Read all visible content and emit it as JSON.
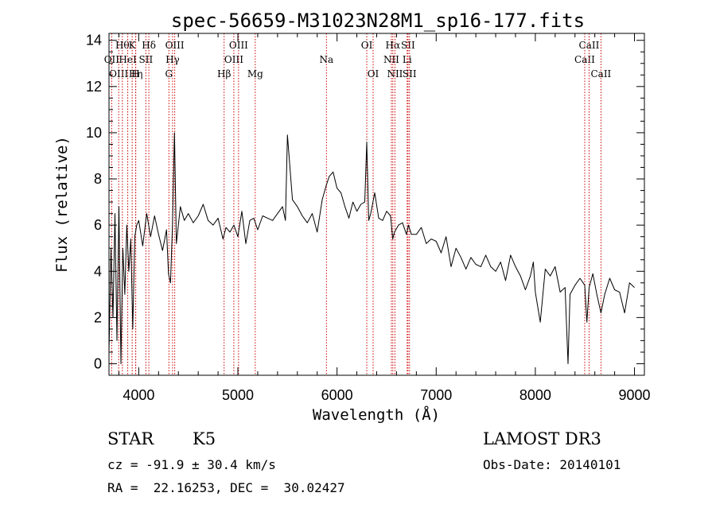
{
  "chart_data": {
    "type": "line",
    "title": "spec-56659-M31023N28M1_sp16-177.fits",
    "xlabel": "Wavelength (Å)",
    "ylabel": "Flux (relative)",
    "xlim": [
      3700,
      9100
    ],
    "ylim": [
      -0.5,
      14.3
    ],
    "xticks": [
      4000,
      5000,
      6000,
      7000,
      8000,
      9000
    ],
    "yticks": [
      0,
      2,
      4,
      6,
      8,
      10,
      12,
      14
    ],
    "grid": false,
    "series": [
      {
        "x": [
          3700,
          3720,
          3740,
          3760,
          3780,
          3800,
          3820,
          3840,
          3860,
          3880,
          3900,
          3920,
          3940,
          3960,
          3980,
          4000,
          4040,
          4080,
          4120,
          4160,
          4200,
          4240,
          4280,
          4300,
          4320,
          4340,
          4360,
          4380,
          4420,
          4460,
          4500,
          4550,
          4600,
          4650,
          4700,
          4750,
          4800,
          4850,
          4880,
          4920,
          4960,
          5000,
          5040,
          5080,
          5120,
          5160,
          5200,
          5250,
          5300,
          5350,
          5400,
          5450,
          5480,
          5500,
          5550,
          5600,
          5650,
          5700,
          5750,
          5800,
          5850,
          5890,
          5920,
          5960,
          6000,
          6040,
          6080,
          6120,
          6160,
          6200,
          6240,
          6280,
          6300,
          6320,
          6340,
          6380,
          6420,
          6460,
          6500,
          6540,
          6562,
          6580,
          6620,
          6660,
          6700,
          6720,
          6750,
          6800,
          6850,
          6900,
          6950,
          7000,
          7050,
          7100,
          7150,
          7200,
          7250,
          7300,
          7350,
          7400,
          7450,
          7500,
          7550,
          7600,
          7650,
          7700,
          7750,
          7800,
          7850,
          7900,
          7950,
          7980,
          8000,
          8050,
          8100,
          8150,
          8200,
          8250,
          8300,
          8330,
          8350,
          8400,
          8450,
          8498,
          8520,
          8542,
          8580,
          8620,
          8662,
          8700,
          8750,
          8800,
          8850,
          8900,
          8950,
          9000
        ],
        "y": [
          0.5,
          5,
          2,
          6.5,
          1,
          6.8,
          0,
          5,
          3,
          6,
          4,
          5.4,
          1.5,
          5.5,
          6,
          6.2,
          5.1,
          6.5,
          5.5,
          6.4,
          5.6,
          4.9,
          5.8,
          3.9,
          3.5,
          6,
          10,
          5.2,
          6.8,
          6.2,
          6.5,
          6.1,
          6.4,
          6.9,
          6.2,
          6.0,
          6.3,
          5.4,
          5.9,
          5.7,
          6.0,
          5.5,
          6.6,
          5.2,
          6.2,
          6.3,
          5.8,
          6.4,
          6.3,
          6.2,
          6.5,
          6.8,
          6.2,
          9.9,
          7.1,
          6.8,
          6.4,
          6.1,
          6.5,
          5.7,
          7.1,
          7.7,
          8.1,
          8.3,
          7.6,
          7.4,
          6.8,
          6.3,
          7.0,
          6.6,
          6.9,
          7.0,
          9.6,
          6.2,
          6.5,
          7.4,
          6.3,
          6.2,
          6.6,
          6.4,
          5.4,
          5.7,
          6.0,
          6.1,
          5.6,
          6.0,
          5.6,
          5.6,
          5.9,
          5.2,
          5.4,
          5.3,
          4.8,
          5.5,
          4.2,
          5.0,
          4.6,
          4.1,
          4.6,
          4.3,
          4.2,
          4.7,
          4.2,
          4.0,
          4.4,
          3.6,
          4.7,
          4.2,
          3.8,
          3.2,
          3.8,
          4.4,
          3.1,
          1.8,
          4.1,
          3.8,
          4.2,
          3.1,
          3.3,
          0.0,
          3.0,
          3.4,
          3.7,
          3.4,
          1.8,
          3.3,
          3.9,
          3.0,
          2.2,
          3.0,
          3.7,
          3.2,
          3.1,
          2.2,
          3.5,
          3.3
        ]
      }
    ],
    "line_markers": [
      {
        "wavelength": 3727,
        "label": "OII",
        "row": 1
      },
      {
        "wavelength": 3798,
        "label": "OIII",
        "row": 2
      },
      {
        "wavelength": 3835,
        "label": "Hθ",
        "row": 0
      },
      {
        "wavelength": 3889,
        "label": "HeI",
        "row": 1
      },
      {
        "wavelength": 3934,
        "label": "K",
        "row": 0
      },
      {
        "wavelength": 3970,
        "label": "Hη",
        "row": 2
      },
      {
        "wavelength": 3968,
        "label": "H",
        "row": 2
      },
      {
        "wavelength": 4072,
        "label": "SII",
        "row": 1
      },
      {
        "wavelength": 4102,
        "label": "Hδ",
        "row": 0
      },
      {
        "wavelength": 4304,
        "label": "G",
        "row": 2
      },
      {
        "wavelength": 4341,
        "label": "Hγ",
        "row": 1
      },
      {
        "wavelength": 4363,
        "label": "OIII",
        "row": 0
      },
      {
        "wavelength": 4861,
        "label": "Hβ",
        "row": 2
      },
      {
        "wavelength": 4959,
        "label": "OIII",
        "row": 1
      },
      {
        "wavelength": 5007,
        "label": "OIII",
        "row": 0
      },
      {
        "wavelength": 5175,
        "label": "Mg",
        "row": 2
      },
      {
        "wavelength": 5893,
        "label": "Na",
        "row": 1
      },
      {
        "wavelength": 6300,
        "label": "OI",
        "row": 0
      },
      {
        "wavelength": 6364,
        "label": "OI",
        "row": 2
      },
      {
        "wavelength": 6548,
        "label": "NII",
        "row": 1
      },
      {
        "wavelength": 6563,
        "label": "Hα",
        "row": 0
      },
      {
        "wavelength": 6584,
        "label": "NII",
        "row": 2
      },
      {
        "wavelength": 6707,
        "label": "Li",
        "row": 1
      },
      {
        "wavelength": 6716,
        "label": "SII",
        "row": 0
      },
      {
        "wavelength": 6731,
        "label": "SII",
        "row": 2
      },
      {
        "wavelength": 8498,
        "label": "CaII",
        "row": 1
      },
      {
        "wavelength": 8542,
        "label": "CaII",
        "row": 0
      },
      {
        "wavelength": 8662,
        "label": "CaII",
        "row": 2
      }
    ]
  },
  "info": {
    "class": "STAR",
    "subclass": "K5",
    "survey": "LAMOST DR3",
    "redshift": "cz = -91.9 ± 30.4 km/s",
    "obs_date": "Obs-Date: 20140101",
    "coords": "RA =  22.16253, DEC =  30.02427"
  },
  "colors": {
    "spectrum": "#000000",
    "markers": "#cc0000"
  }
}
